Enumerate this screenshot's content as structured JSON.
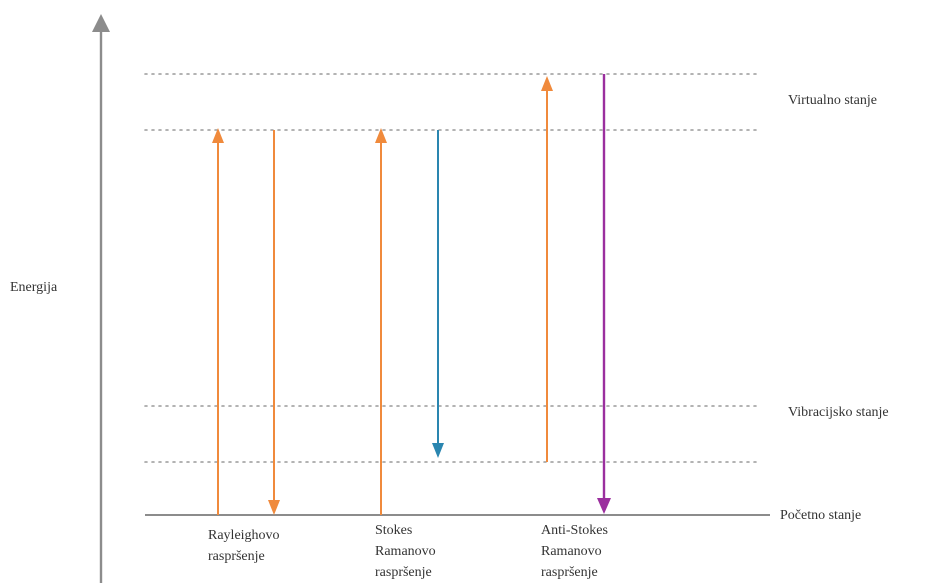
{
  "axis": {
    "label": "Energija"
  },
  "levels": {
    "virtual": "Virtualno stanje",
    "vibrational": "Vibracijsko stanje",
    "ground": "Početno stanje"
  },
  "processes": [
    {
      "name": "rayleigh",
      "label_lines": [
        "Rayleighovo",
        "raspršenje"
      ]
    },
    {
      "name": "stokes",
      "label_lines": [
        "Stokes",
        "Ramanovo",
        "raspršenje"
      ]
    },
    {
      "name": "anti-stokes",
      "label_lines": [
        "Anti-Stokes",
        "Ramanovo",
        "raspršenje"
      ]
    }
  ],
  "colors": {
    "axis": "#8c8c8c",
    "ground_line": "#8c8c8c",
    "orange": "#f08a3c",
    "blue": "#2a86b0",
    "purple": "#9b2f9e",
    "dotted": "#9a9a9a"
  }
}
